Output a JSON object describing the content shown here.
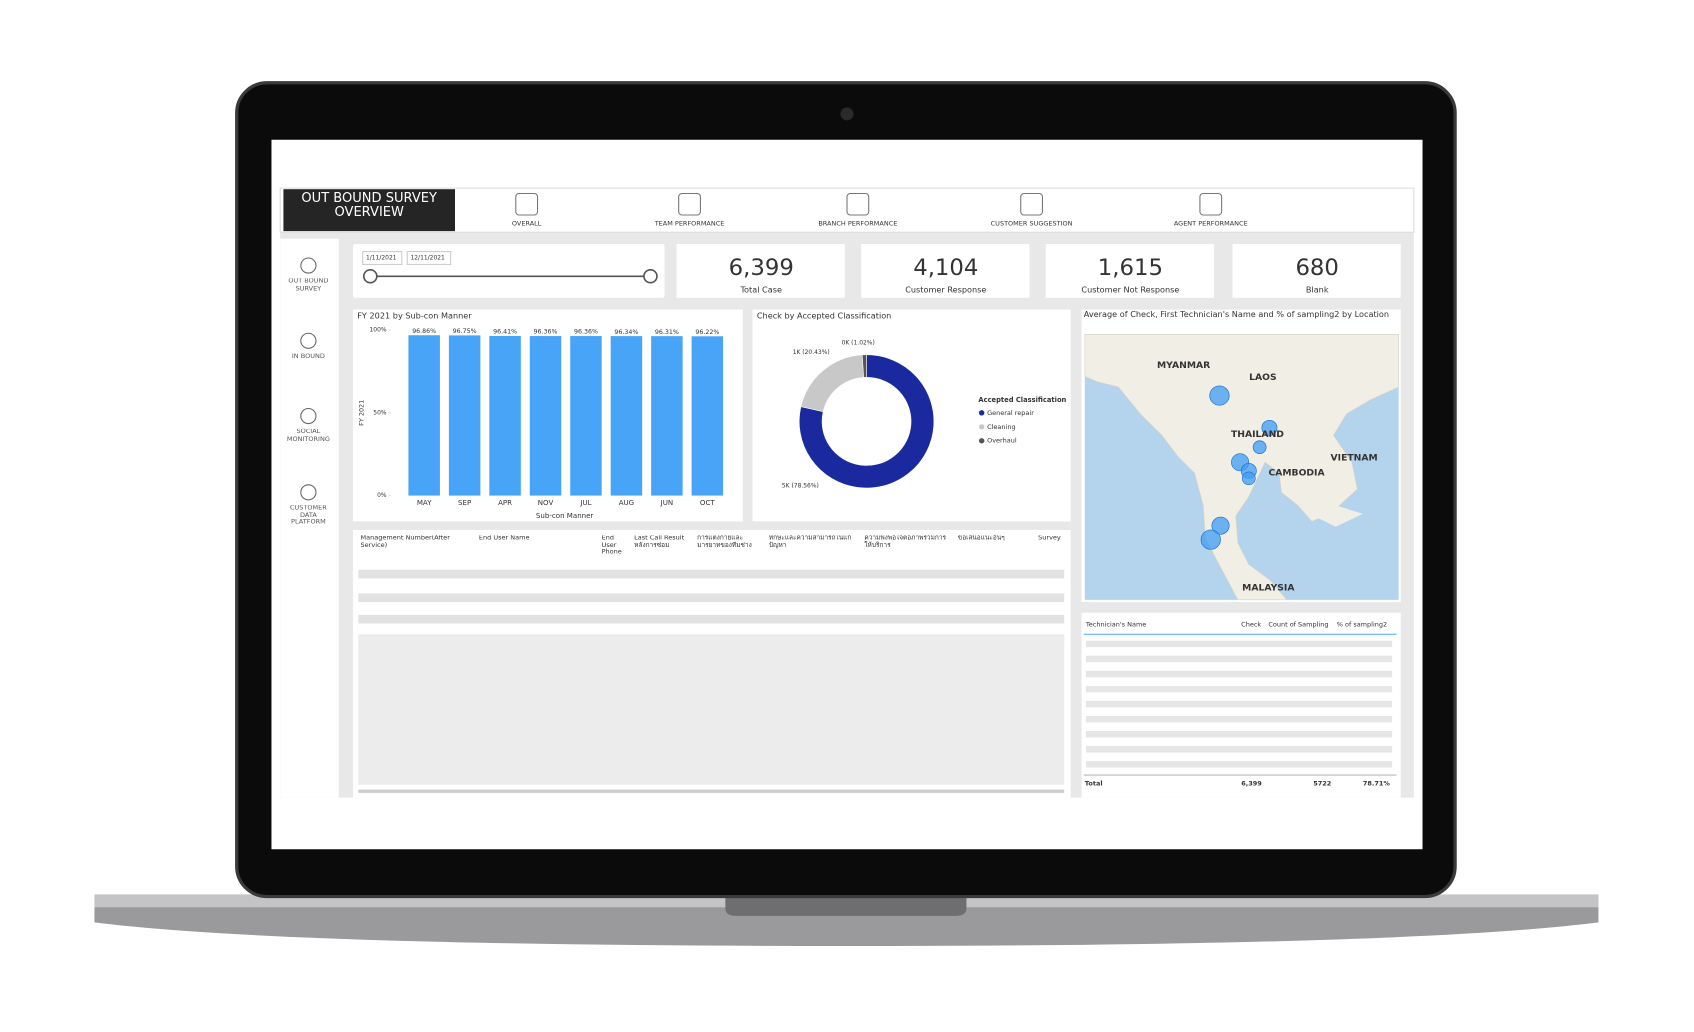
{
  "header": {
    "title": "OUT BOUND SURVEY OVERVIEW",
    "nav": [
      "OVERALL",
      "TEAM PERFORMANCE",
      "BRANCH PERFORMANCE",
      "CUSTOMER SUGGESTION",
      "AGENT PERFORMANCE"
    ]
  },
  "sidebar": [
    "OUT BOUND SURVEY",
    "IN BOUND",
    "SOCIAL MONITORING",
    "CUSTOMER DATA PLATFORM"
  ],
  "date_range": [
    "1/11/2021",
    "12/11/2021"
  ],
  "kpis": [
    {
      "value": "6,399",
      "label": "Total Case"
    },
    {
      "value": "4,104",
      "label": "Customer Response"
    },
    {
      "value": "1,615",
      "label": "Customer Not Response"
    },
    {
      "value": "680",
      "label": "Blank"
    }
  ],
  "chart_data": [
    {
      "type": "bar",
      "title": "FY 2021 by Sub-con Manner",
      "x_label": "Sub-con Manner",
      "y_label": "FY 2021",
      "categories": [
        "MAY",
        "SEP",
        "APR",
        "NOV",
        "JUL",
        "AUG",
        "JUN",
        "OCT"
      ],
      "values": [
        96.86,
        96.75,
        96.41,
        96.36,
        96.36,
        96.34,
        96.31,
        96.22
      ],
      "value_labels": [
        "96.86%",
        "96.75%",
        "96.41%",
        "96.36%",
        "96.36%",
        "96.34%",
        "96.31%",
        "96.22%"
      ],
      "color": "#48a4f7",
      "ylim": [
        0,
        100
      ],
      "yticks": [
        {
          "value": 0,
          "label": "0%"
        },
        {
          "value": 50,
          "label": "50%"
        },
        {
          "value": 100,
          "label": "100%"
        }
      ]
    },
    {
      "type": "pie",
      "title": "Check by Accepted Classification",
      "legend_title": "Accepted Classification",
      "categories": [
        "General repair",
        "Cleaning",
        "Overhaul"
      ],
      "values": [
        78.56,
        20.43,
        1.02
      ],
      "value_labels": [
        "5K (78.56%)",
        "1K (20.43%)",
        "0K (1.02%)"
      ],
      "colors": [
        "#1a2a9e",
        "#c8c8c8",
        "#555555"
      ]
    }
  ],
  "map": {
    "title": "Average of Check, First Technician's Name and % of sampling2 by Location",
    "places": [
      "MYANMAR",
      "LAOS",
      "THAILAND",
      "CAMBODIA",
      "VIETNAM",
      "MALAYSIA"
    ]
  },
  "survey_table": {
    "columns": [
      "Management Number(After Service)",
      "End User Name",
      "End User Phone",
      "Last Call Result หลังการซ่อม",
      "การแต่งกายและมารยาทของทีมช่าง",
      "ทักษะและความสามารถในแก้ปัญหา",
      "ความพึงพอใจต่อภาพรวมการให้บริการ",
      "ข้อเสนอแนะอื่นๆ",
      "Survey"
    ]
  },
  "technician_table": {
    "columns": [
      "Technician's Name",
      "Check",
      "Count of Sampling",
      "% of sampling2"
    ],
    "total": [
      "Total",
      "6,399",
      "5722",
      "78.71%"
    ]
  }
}
